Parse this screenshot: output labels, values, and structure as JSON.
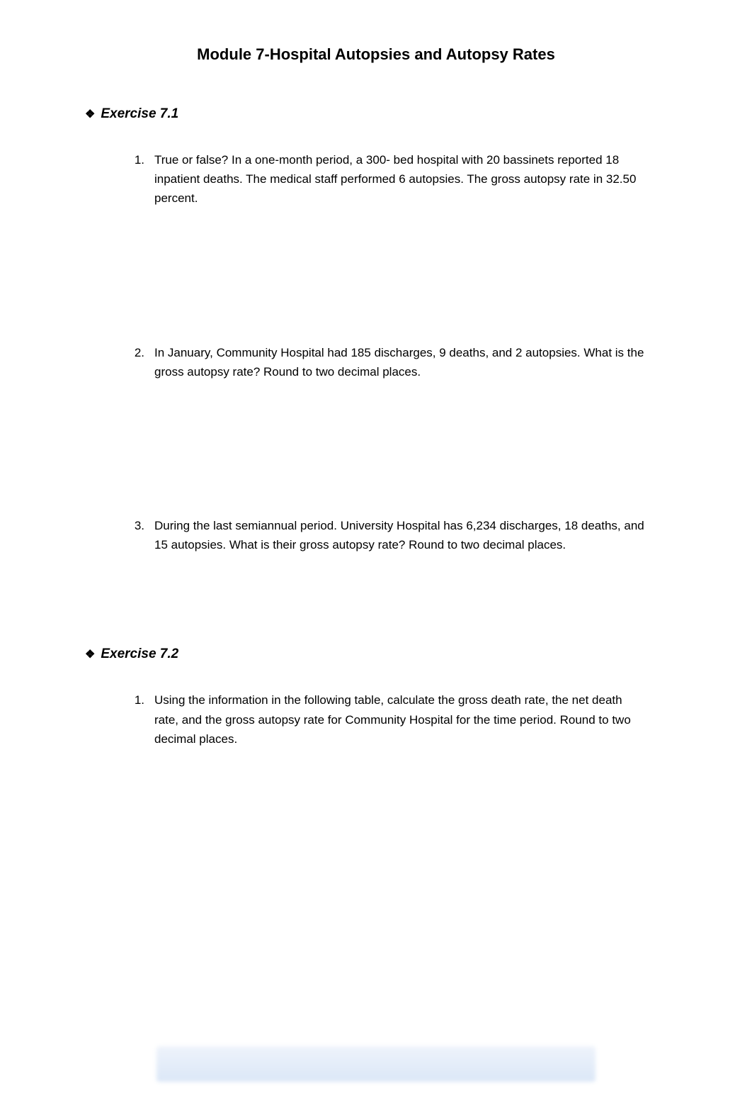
{
  "page": {
    "title": "Module 7-Hospital Autopsies and Autopsy Rates",
    "title_fontsize": 22,
    "title_fontweight": 700,
    "body_fontsize": 17,
    "background_color": "#ffffff",
    "text_color": "#000000",
    "footer_blur_color_top": "#eef3fb",
    "footer_blur_color_bottom": "#dbe7f7"
  },
  "sections": [
    {
      "heading": "Exercise 7.1",
      "bullet_glyph": "❖",
      "heading_fontsize": 19,
      "heading_fontweight": 700,
      "heading_style": "italic",
      "questions": [
        {
          "number": "1.",
          "text": "True or false? In a one-month period, a 300- bed hospital with 20 bassinets reported 18 inpatient deaths. The medical staff performed 6 autopsies. The gross autopsy rate in 32.50 percent."
        },
        {
          "number": "2.",
          "text": "In January, Community Hospital had 185 discharges, 9 deaths, and 2 autopsies. What is the gross autopsy rate? Round to two decimal places."
        },
        {
          "number": "3.",
          "text": "During the last semiannual period. University Hospital has 6,234 discharges, 18 deaths, and 15 autopsies. What is their gross autopsy rate? Round to two decimal places."
        }
      ]
    },
    {
      "heading": "Exercise 7.2",
      "bullet_glyph": "❖",
      "heading_fontsize": 19,
      "heading_fontweight": 700,
      "heading_style": "italic",
      "questions": [
        {
          "number": "1.",
          "text": "Using the information in the following table, calculate the gross death rate, the net death rate, and the gross autopsy rate for Community Hospital for the time period. Round to two decimal places."
        }
      ]
    }
  ]
}
